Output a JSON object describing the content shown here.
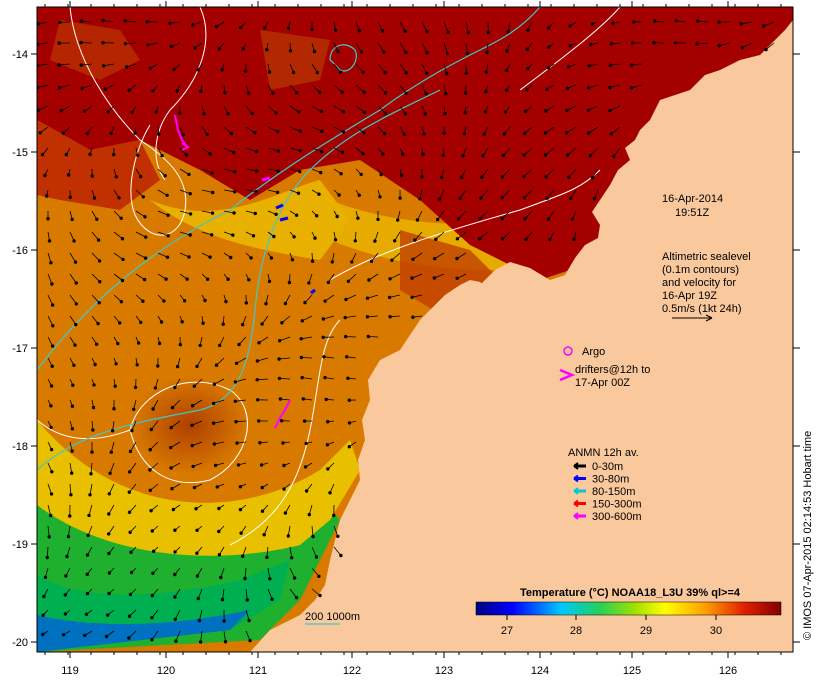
{
  "map": {
    "date_label": "16-Apr-2014",
    "time_label": "19:51Z",
    "altimetry_note": [
      "Altimetric sealevel",
      "(0.1m contours)",
      "and velocity for",
      "16-Apr 19Z",
      "0.5m/s (1kt 24h)"
    ],
    "argo_label": "Argo",
    "drifters_label": [
      "drifters@12h to",
      "17-Apr 00Z"
    ],
    "anmn_title": "ANMN 12h av.",
    "anmn_items": [
      {
        "label": "0-30m",
        "color": "#000000"
      },
      {
        "label": "30-80m",
        "color": "#0000ff"
      },
      {
        "label": "80-150m",
        "color": "#00cccc"
      },
      {
        "label": "150-300m",
        "color": "#ff0000"
      },
      {
        "label": "300-600m",
        "color": "#ff00ff"
      }
    ],
    "depth_label": "200  1000m",
    "colorbar_title": "Temperature (°C) NOAA18_L3U 39% ql>=4",
    "colorbar_ticks": [
      "27",
      "28",
      "29",
      "30"
    ],
    "credit": "© IMOS 07-Apr-2015 02:14:53 Hobart time",
    "x_axis_ticks": [
      "119",
      "120",
      "121",
      "122",
      "123",
      "124",
      "125",
      "126"
    ],
    "y_axis_ticks": [
      "-14",
      "-15",
      "-16",
      "-17",
      "-18",
      "-19",
      "-20"
    ],
    "colors": {
      "land": "#f9c89c",
      "sst_warm": "#a50000",
      "sst_mid": "#d97a00",
      "sst_cool": "#e8c000",
      "sst_cold": "#20b030",
      "contour": "#ffffff",
      "cyan_isobath": "#40c8c8"
    }
  }
}
